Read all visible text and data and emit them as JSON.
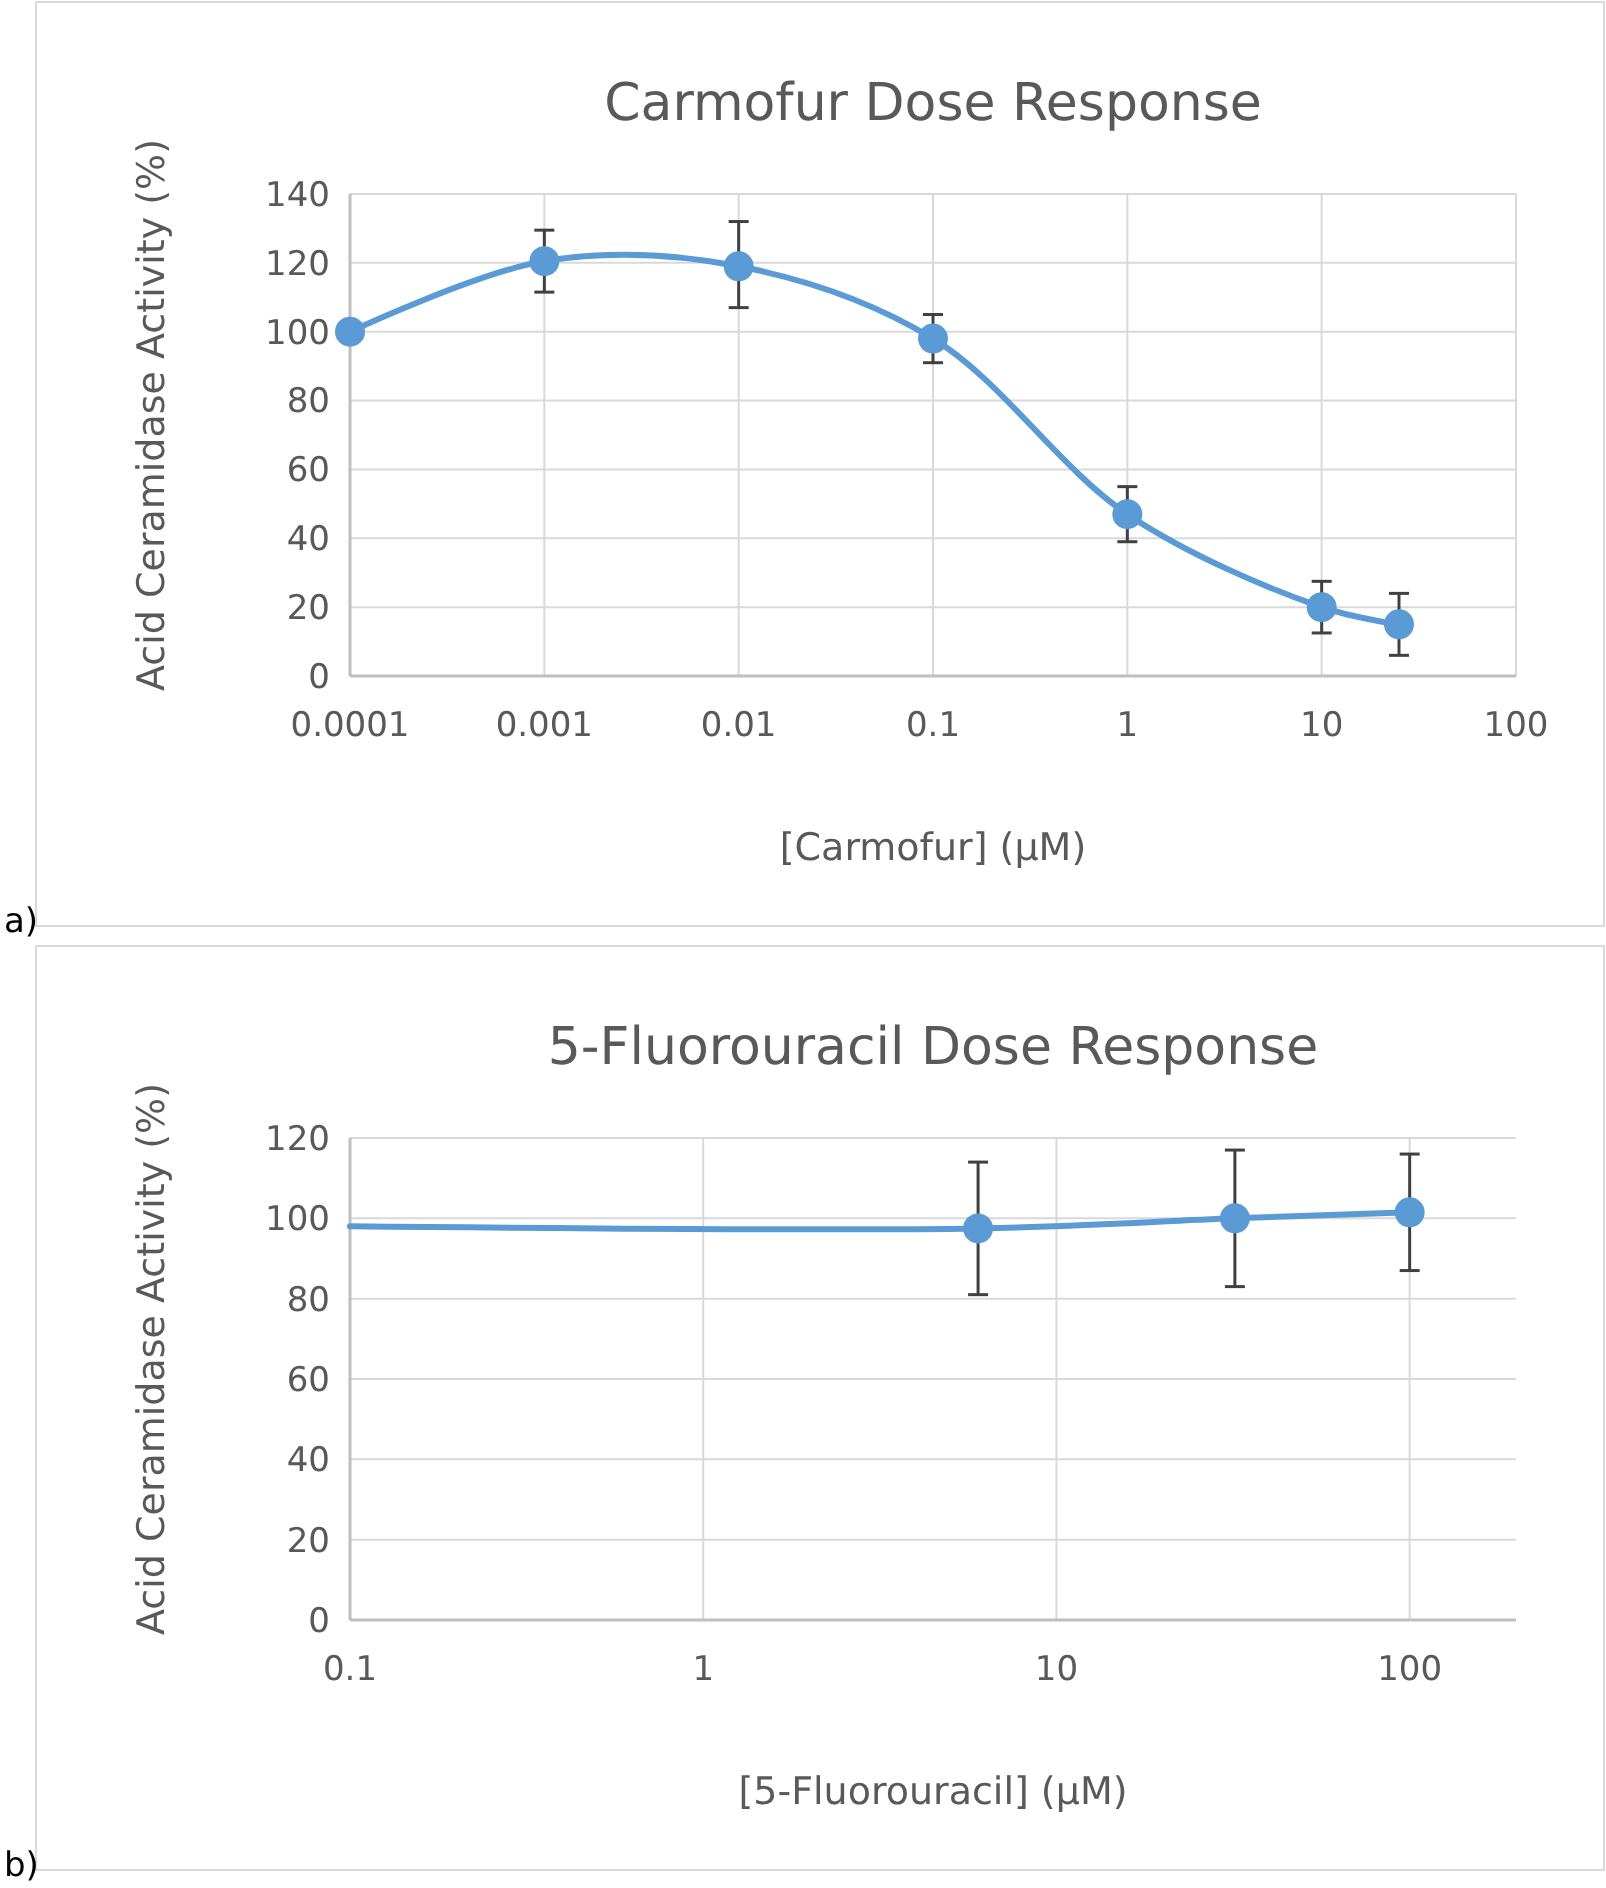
{
  "chart_data": [
    {
      "type": "line",
      "title": "Carmofur Dose Response",
      "xlabel": "[Carmofur] (µM)",
      "ylabel": "Acid Ceramidase Activity (%)",
      "annotations": [
        "a)"
      ],
      "log": "x",
      "grid": true,
      "marker": "circle",
      "series": [
        {
          "color": "#5b9bd5",
          "x": [
            0.0001,
            0.001,
            0.01,
            0.1,
            1,
            10,
            25
          ],
          "values": [
            100,
            120.5,
            119,
            98,
            47,
            20,
            15
          ],
          "errors": [
            null,
            [
              111.5,
              129.5
            ],
            [
              107,
              132
            ],
            [
              91,
              105
            ],
            [
              39,
              55
            ],
            [
              12.5,
              27.5
            ],
            [
              6,
              24
            ]
          ]
        }
      ],
      "xlim": [
        0.0001,
        100
      ],
      "xticks": [
        0.0001,
        0.001,
        0.01,
        0.1,
        1,
        10,
        100
      ],
      "ylim": [
        0,
        140
      ],
      "yticks": [
        0,
        20,
        40,
        60,
        80,
        100,
        120,
        140
      ]
    },
    {
      "type": "line",
      "title": "5-Fluorouracil Dose Response",
      "xlabel": "[5-Fluorouracil] (µM)",
      "ylabel": "Acid Ceramidase Activity (%)",
      "annotations": [
        "b)"
      ],
      "log": "x",
      "grid": true,
      "marker": "circle",
      "series": [
        {
          "color": "#5b9bd5",
          "marker": "none",
          "x": [
            0.1,
            6,
            32,
            100
          ],
          "values": [
            98,
            97.5,
            100,
            101.5
          ]
        },
        {
          "type": "scatter",
          "color": "#5b9bd5",
          "x": [
            6,
            32,
            100
          ],
          "values": [
            97.5,
            100,
            101.5
          ],
          "errors": [
            [
              81,
              114
            ],
            [
              83,
              117
            ],
            [
              87,
              116
            ]
          ]
        }
      ],
      "xlim": [
        0.1,
        200
      ],
      "xticks": [
        0.1,
        1,
        10,
        100
      ],
      "ylim": [
        0,
        120
      ],
      "yticks": [
        0,
        20,
        40,
        60,
        80,
        100,
        120
      ]
    }
  ]
}
